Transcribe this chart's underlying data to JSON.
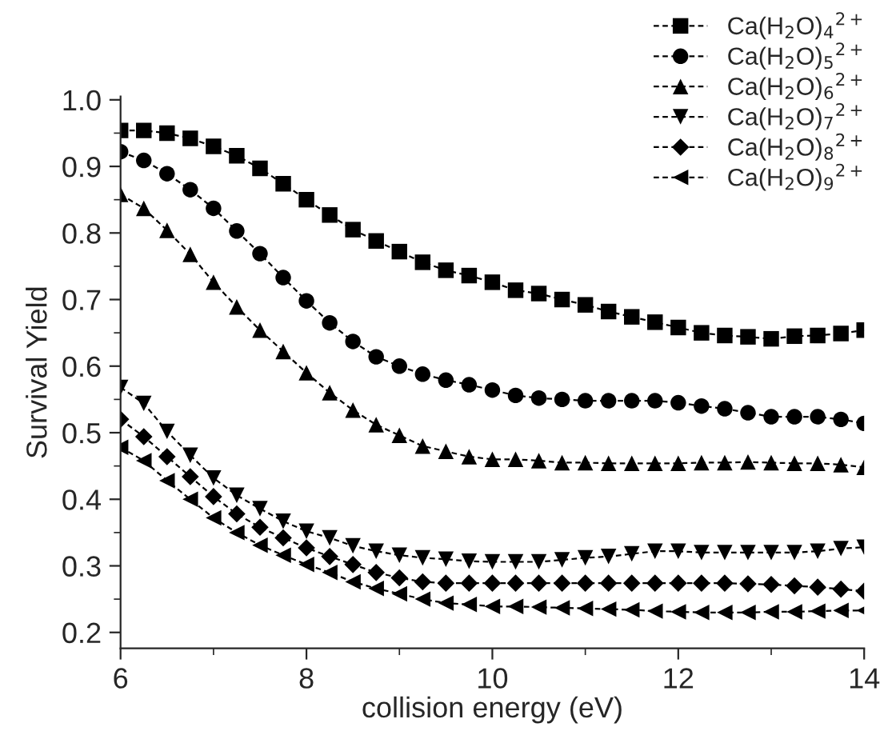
{
  "chart_data": {
    "type": "line",
    "xlabel": "collision energy (eV)",
    "ylabel": "Survival Yield",
    "x": [
      6,
      6.25,
      6.5,
      6.75,
      7,
      7.25,
      7.5,
      7.75,
      8,
      8.25,
      8.5,
      8.75,
      9,
      9.25,
      9.5,
      9.75,
      10,
      10.25,
      10.5,
      10.75,
      11,
      11.25,
      11.5,
      11.75,
      12,
      12.25,
      12.5,
      12.75,
      13,
      13.25,
      13.5,
      13.75,
      14
    ],
    "xlim": [
      6,
      14
    ],
    "xticks": [
      6,
      {
        "value": 7,
        "label": null
      },
      8,
      {
        "value": 9,
        "label": null
      },
      10,
      {
        "value": 11,
        "label": null
      },
      12,
      {
        "value": 13,
        "label": null
      },
      14
    ],
    "ylim": [
      0.176,
      1.005
    ],
    "yticks": [
      0.2,
      {
        "value": 0.25,
        "label": null
      },
      0.3,
      {
        "value": 0.35,
        "label": null
      },
      0.4,
      {
        "value": 0.45,
        "label": null
      },
      0.5,
      {
        "value": 0.55,
        "label": null
      },
      0.6,
      {
        "value": 0.65,
        "label": null
      },
      0.7,
      {
        "value": 0.75,
        "label": null
      },
      0.8,
      {
        "value": 0.85,
        "label": null
      },
      0.9,
      {
        "value": 0.95,
        "label": null
      },
      {
        "value": 1.0,
        "label": "1.0"
      }
    ],
    "grid": false,
    "legend": "top right",
    "line_style": "dashed",
    "series": [
      {
        "name": "Ca(H$_{2}$O)$_{4}$$^{2+}$",
        "color": "#000000",
        "marker": "square",
        "values": [
          0.954,
          0.954,
          0.95,
          0.942,
          0.93,
          0.916,
          0.897,
          0.874,
          0.85,
          0.827,
          0.805,
          0.788,
          0.772,
          0.756,
          0.744,
          0.736,
          0.726,
          0.714,
          0.709,
          0.7,
          0.692,
          0.682,
          0.674,
          0.666,
          0.658,
          0.65,
          0.646,
          0.644,
          0.641,
          0.645,
          0.646,
          0.649,
          0.654
        ]
      },
      {
        "name": "Ca(H$_{2}$O)$_{5}$$^{2+}$",
        "color": "#000000",
        "marker": "circle",
        "values": [
          0.922,
          0.909,
          0.889,
          0.865,
          0.837,
          0.803,
          0.769,
          0.733,
          0.698,
          0.665,
          0.637,
          0.614,
          0.6,
          0.588,
          0.579,
          0.572,
          0.564,
          0.556,
          0.552,
          0.55,
          0.548,
          0.548,
          0.548,
          0.548,
          0.545,
          0.54,
          0.536,
          0.53,
          0.524,
          0.524,
          0.524,
          0.52,
          0.514
        ]
      },
      {
        "name": "Ca(H$_{2}$O)$_{6}$$^{2+}$",
        "color": "#000000",
        "marker": "triangle",
        "values": [
          0.858,
          0.837,
          0.804,
          0.768,
          0.726,
          0.689,
          0.654,
          0.622,
          0.59,
          0.56,
          0.534,
          0.512,
          0.496,
          0.48,
          0.472,
          0.464,
          0.46,
          0.46,
          0.458,
          0.455,
          0.455,
          0.454,
          0.454,
          0.454,
          0.454,
          0.455,
          0.455,
          0.456,
          0.455,
          0.454,
          0.454,
          0.452,
          0.448
        ]
      },
      {
        "name": "Ca(H$_{2}$O)$_{7}$$^{2+}$",
        "color": "#000000",
        "marker": "triangle_down",
        "values": [
          0.568,
          0.544,
          0.502,
          0.466,
          0.432,
          0.406,
          0.386,
          0.367,
          0.352,
          0.342,
          0.33,
          0.322,
          0.316,
          0.312,
          0.31,
          0.307,
          0.306,
          0.306,
          0.306,
          0.309,
          0.312,
          0.314,
          0.318,
          0.322,
          0.322,
          0.32,
          0.32,
          0.32,
          0.32,
          0.32,
          0.322,
          0.326,
          0.328
        ]
      },
      {
        "name": "Ca(H$_{2}$O)$_{8}$$^{2+}$",
        "color": "#000000",
        "marker": "diamond",
        "values": [
          0.52,
          0.494,
          0.464,
          0.434,
          0.404,
          0.378,
          0.358,
          0.342,
          0.327,
          0.314,
          0.302,
          0.29,
          0.282,
          0.276,
          0.274,
          0.274,
          0.274,
          0.274,
          0.274,
          0.274,
          0.274,
          0.274,
          0.274,
          0.274,
          0.274,
          0.274,
          0.274,
          0.273,
          0.272,
          0.27,
          0.268,
          0.265,
          0.262
        ]
      },
      {
        "name": "Ca(H$_{2}$O)$_{9}$$^{2+}$",
        "color": "#000000",
        "marker": "triangle_left",
        "values": [
          0.478,
          0.458,
          0.428,
          0.4,
          0.372,
          0.35,
          0.331,
          0.316,
          0.302,
          0.29,
          0.276,
          0.266,
          0.258,
          0.25,
          0.244,
          0.242,
          0.239,
          0.239,
          0.238,
          0.237,
          0.236,
          0.235,
          0.234,
          0.232,
          0.231,
          0.23,
          0.23,
          0.23,
          0.231,
          0.231,
          0.232,
          0.233,
          0.233
        ]
      }
    ]
  }
}
